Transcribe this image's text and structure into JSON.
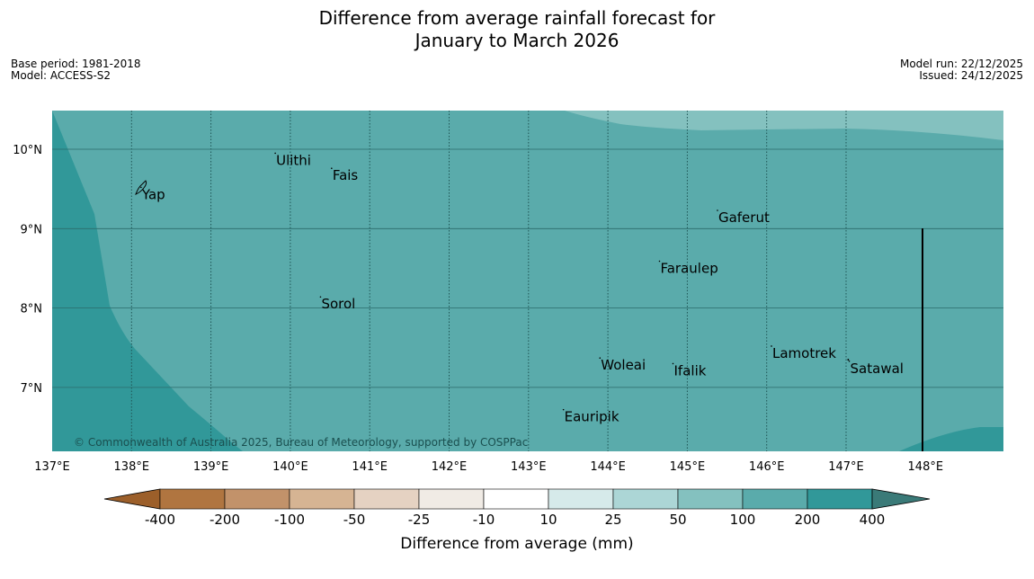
{
  "title": {
    "line1": "Difference from average rainfall forecast for",
    "line2": "January to March 2026"
  },
  "meta_left": {
    "base_period": "Base period: 1981-2018",
    "model": "Model: ACCESS-S2"
  },
  "meta_right": {
    "model_run": "Model run: 22/12/2025",
    "issued": "Issued: 24/12/2025"
  },
  "map": {
    "lon_labels": [
      "137°E",
      "138°E",
      "139°E",
      "140°E",
      "141°E",
      "142°E",
      "143°E",
      "144°E",
      "145°E",
      "146°E",
      "147°E",
      "148°E"
    ],
    "lat_labels": [
      "10°N",
      "9°N",
      "8°N",
      "7°N"
    ],
    "places": [
      {
        "name": "Ulithi",
        "lon": 139.81,
        "lat": 9.95
      },
      {
        "name": "Fais",
        "lon": 140.52,
        "lat": 9.76
      },
      {
        "name": "Yap",
        "lon": 138.12,
        "lat": 9.52
      },
      {
        "name": "Gaferut",
        "lon": 145.38,
        "lat": 9.23
      },
      {
        "name": "Faraulep",
        "lon": 144.65,
        "lat": 8.59
      },
      {
        "name": "Sorol",
        "lon": 140.38,
        "lat": 8.14
      },
      {
        "name": "Lamotrek",
        "lon": 146.06,
        "lat": 7.52
      },
      {
        "name": "Woleai",
        "lon": 143.9,
        "lat": 7.37
      },
      {
        "name": "Ifalik",
        "lon": 144.82,
        "lat": 7.3
      },
      {
        "name": "Satawal",
        "lon": 147.04,
        "lat": 7.33
      },
      {
        "name": "Eauripik",
        "lon": 143.44,
        "lat": 6.72
      }
    ],
    "copyright": "© Commonwealth of Australia 2025, Bureau of Meteorology, supported by COSPPac"
  },
  "colorbar": {
    "labels": [
      "-400",
      "-200",
      "-100",
      "-50",
      "-25",
      "-10",
      "10",
      "25",
      "50",
      "100",
      "200",
      "400"
    ],
    "title": "Difference from average (mm)",
    "colors": [
      "#9c5f2a",
      "#b07540",
      "#c2926a",
      "#d6b493",
      "#e5d2c2",
      "#f0ebe5",
      "#ffffff",
      "#d6eaea",
      "#acd6d6",
      "#84c1bf",
      "#5aabab",
      "#319899",
      "#3a7a78"
    ]
  }
}
